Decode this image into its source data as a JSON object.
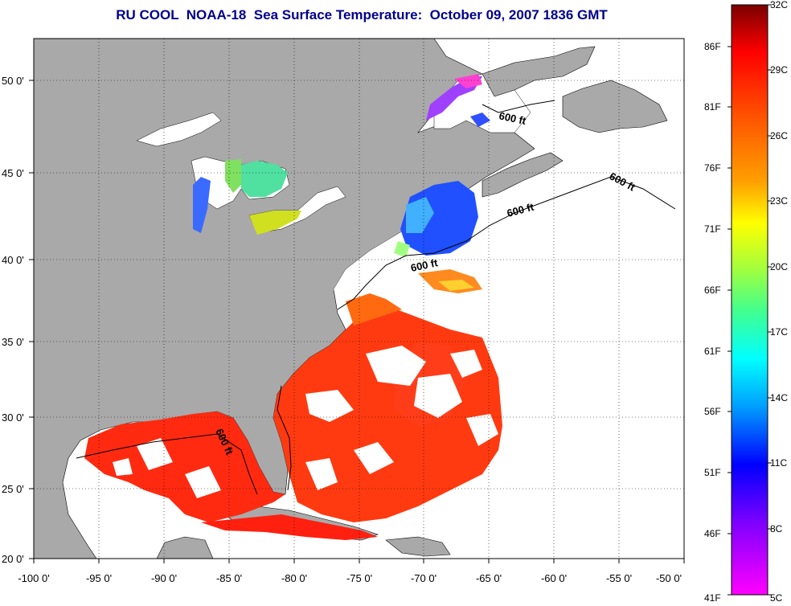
{
  "title": "RU COOL  NOAA-18  Sea Surface Temperature:  October 09, 2007 1836 GMT",
  "lat_labels": [
    "50 0'",
    "45 0'",
    "40 0'",
    "35 0'",
    "30 0'",
    "25 0'",
    "20 0'"
  ],
  "lon_labels": [
    "-100 0'",
    "-95 0'",
    "-90 0'",
    "-85 0'",
    "-80 0'",
    "-75 0'",
    "-70 0'",
    "-65 0'",
    "-60 0'",
    "-55 0'",
    "-50 0'"
  ],
  "isobath_label": "600 ft",
  "colorbar": {
    "celsius": [
      "32C",
      "29C",
      "26C",
      "23C",
      "20C",
      "17C",
      "14C",
      "11C",
      "8C",
      "5C"
    ],
    "fahrenheit": [
      "86F",
      "81F",
      "76F",
      "71F",
      "66F",
      "61F",
      "56F",
      "51F",
      "46F",
      "41F"
    ]
  },
  "colors": {
    "land": "#a9a9a9",
    "ocean_nodata": "#ffffff",
    "title": "#00008b"
  }
}
